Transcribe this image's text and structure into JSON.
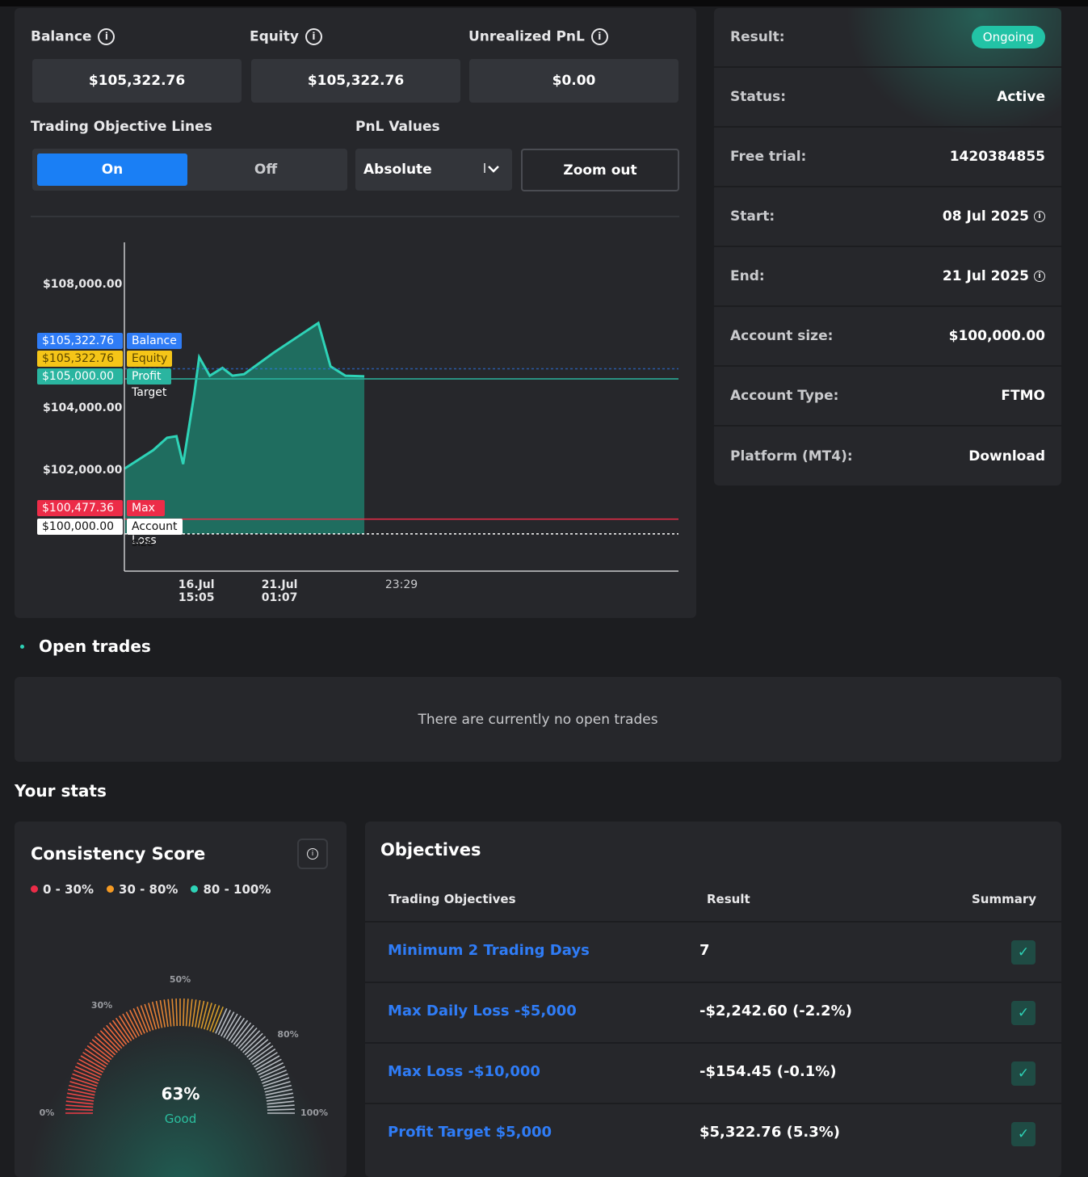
{
  "account": {
    "balance_label": "Balance",
    "balance_value": "$105,322.76",
    "equity_label": "Equity",
    "equity_value": "$105,322.76",
    "pnl_label": "Unrealized PnL",
    "pnl_value": "$0.00"
  },
  "controls": {
    "objective_lines_label": "Trading Objective Lines",
    "on_label": "On",
    "off_label": "Off",
    "on_selected": true,
    "pnl_values_label": "PnL Values",
    "pnl_select_value": "Absolute",
    "zoom_out_label": "Zoom out"
  },
  "chart_data": {
    "type": "area",
    "y_ticks": [
      "$108,000.00",
      "$104,000.00",
      "$102,000.00"
    ],
    "ylim": [
      98800,
      109400
    ],
    "x_tick_labels": [
      {
        "label": "16.Jul 15:05",
        "at": 0.13
      },
      {
        "label": "21.Jul 01:07",
        "at": 0.28
      },
      {
        "label": "23:29",
        "at": 0.5
      }
    ],
    "series": [
      {
        "name": "Balance",
        "x": [
          0,
          0.052,
          0.077,
          0.094,
          0.106,
          0.126,
          0.135,
          0.154,
          0.177,
          0.195,
          0.216,
          0.27,
          0.35,
          0.372,
          0.399,
          0.433
        ],
        "y": [
          102100,
          102700,
          103100,
          103150,
          102250,
          104500,
          105700,
          105100,
          105350,
          105100,
          105150,
          105850,
          106800,
          105400,
          105100,
          105080
        ]
      }
    ],
    "lines": [
      {
        "name": "Balance",
        "value": 105322.76,
        "label": "$105,322.76",
        "color": "#2f7cf6",
        "style": "dotted"
      },
      {
        "name": "Equity",
        "value": 105322.76,
        "label": "$105,322.76",
        "color": "#f5c518",
        "style": "none"
      },
      {
        "name": "Profit Target",
        "value": 105000.0,
        "label": "$105,000.00",
        "color": "#2ab5a0",
        "style": "solid"
      },
      {
        "name": "Max Daily Loss",
        "value": 100477.36,
        "label": "$100,477.36",
        "color": "#ec2c48",
        "style": "solid"
      },
      {
        "name": "Account size",
        "value": 100000.0,
        "label": "$100,000.00",
        "color": "#ffffff",
        "style": "dotted"
      }
    ],
    "grid": false
  },
  "info": {
    "result_label": "Result:",
    "result_value": "Ongoing",
    "status_label": "Status:",
    "status_value": "Active",
    "trial_label": "Free trial:",
    "trial_value": "1420384855",
    "start_label": "Start:",
    "start_value": "08 Jul 2025",
    "end_label": "End:",
    "end_value": "21 Jul 2025",
    "size_label": "Account size:",
    "size_value": "$100,000.00",
    "type_label": "Account Type:",
    "type_value": "FTMO",
    "platform_label": "Platform (MT4):",
    "platform_value": "Download"
  },
  "open_trades": {
    "title": "Open trades",
    "empty_text": "There are currently no open trades"
  },
  "stats": {
    "title": "Your stats",
    "consistency": {
      "title": "Consistency Score",
      "legend": [
        {
          "label": "0 - 30%",
          "color": "#ec2c48"
        },
        {
          "label": "30 - 80%",
          "color": "#f59a23"
        },
        {
          "label": "80 - 100%",
          "color": "#2ed3b7"
        }
      ],
      "score": 0.63,
      "score_text": "63%",
      "rating": "Good",
      "tick_labels": [
        "0%",
        "30%",
        "50%",
        "80%",
        "100%"
      ]
    },
    "objectives": {
      "title": "Objectives",
      "col_objective": "Trading Objectives",
      "col_result": "Result",
      "col_summary": "Summary",
      "rows": [
        {
          "name": "Minimum 2 Trading Days",
          "result": "7"
        },
        {
          "name": "Max Daily Loss -$5,000",
          "result": "-$2,242.60 (-2.2%)"
        },
        {
          "name": "Max Loss -$10,000",
          "result": "-$154.45 (-0.1%)"
        },
        {
          "name": "Profit Target $5,000",
          "result": "$5,322.76 (5.3%)"
        }
      ]
    }
  }
}
